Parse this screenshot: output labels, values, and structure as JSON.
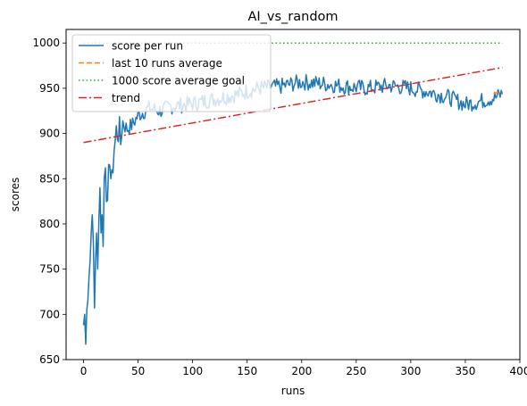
{
  "chart_data": {
    "type": "line",
    "title": "AI_vs_random",
    "xlabel": "runs",
    "ylabel": "scores",
    "xlim": [
      -16,
      400
    ],
    "ylim": [
      650,
      1015
    ],
    "xticks": [
      0,
      50,
      100,
      150,
      200,
      250,
      300,
      350,
      400
    ],
    "yticks": [
      650,
      700,
      750,
      800,
      850,
      900,
      950,
      1000
    ],
    "grid": false,
    "legend_position": "upper-left",
    "colors": {
      "score": "#1f77b4",
      "average": "#ff7f0e",
      "goal": "#2ca02c",
      "trend": "#d62728"
    },
    "series": [
      {
        "name": "score per run",
        "style": "solid",
        "keypoints": [
          [
            0,
            688
          ],
          [
            1,
            700
          ],
          [
            2,
            667
          ],
          [
            3,
            705
          ],
          [
            4,
            716
          ],
          [
            5,
            740
          ],
          [
            6,
            760
          ],
          [
            7,
            790
          ],
          [
            8,
            810
          ],
          [
            9,
            780
          ],
          [
            10,
            707
          ],
          [
            11,
            760
          ],
          [
            12,
            790
          ],
          [
            13,
            750
          ],
          [
            14,
            800
          ],
          [
            15,
            840
          ],
          [
            16,
            790
          ],
          [
            17,
            810
          ],
          [
            18,
            775
          ],
          [
            19,
            850
          ],
          [
            20,
            862
          ],
          [
            22,
            826
          ],
          [
            24,
            865
          ],
          [
            25,
            850
          ],
          [
            26,
            860
          ],
          [
            28,
            880
          ],
          [
            30,
            901
          ],
          [
            32,
            905
          ],
          [
            34,
            890
          ],
          [
            36,
            913
          ],
          [
            38,
            908
          ],
          [
            40,
            905
          ],
          [
            45,
            910
          ],
          [
            50,
            920
          ],
          [
            60,
            928
          ],
          [
            70,
            925
          ],
          [
            80,
            930
          ],
          [
            100,
            933
          ],
          [
            120,
            938
          ],
          [
            140,
            943
          ],
          [
            160,
            950
          ],
          [
            180,
            952
          ],
          [
            200,
            957
          ],
          [
            220,
            955
          ],
          [
            240,
            952
          ],
          [
            260,
            950
          ],
          [
            280,
            953
          ],
          [
            300,
            950
          ],
          [
            320,
            945
          ],
          [
            335,
            940
          ],
          [
            350,
            932
          ],
          [
            365,
            936
          ],
          [
            378,
            940
          ],
          [
            384,
            944
          ]
        ],
        "noise": 9
      },
      {
        "name": "last 10 runs average",
        "style": "dashed",
        "x": [
          376,
          378,
          380,
          382,
          384
        ],
        "y": [
          944,
          945,
          945,
          944,
          944
        ]
      },
      {
        "name": "1000 score average goal",
        "style": "dotted",
        "x": [
          0,
          384
        ],
        "y": [
          1000,
          1000
        ]
      },
      {
        "name": "trend",
        "style": "dashdot",
        "x": [
          0,
          384
        ],
        "y": [
          890,
          973
        ]
      }
    ]
  }
}
